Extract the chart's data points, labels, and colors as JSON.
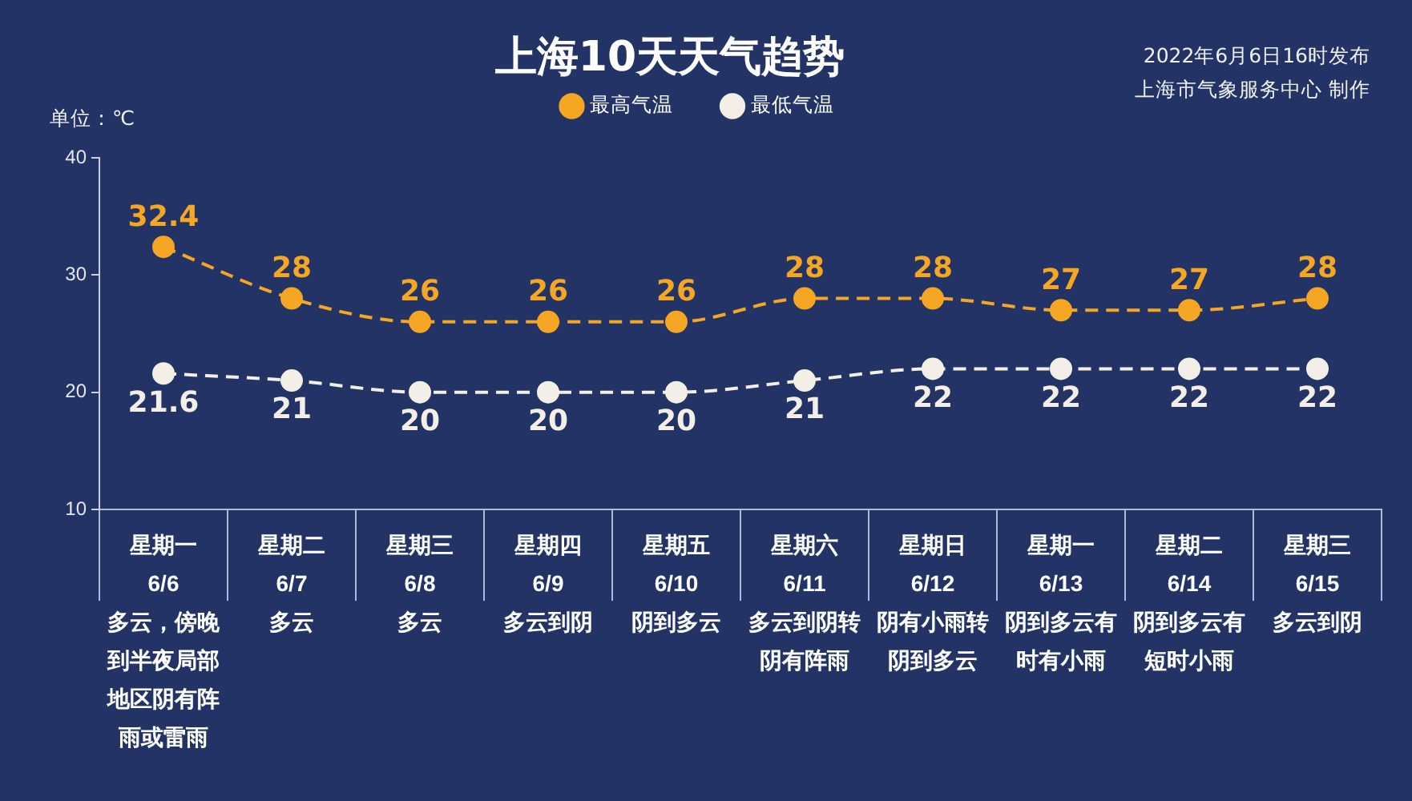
{
  "chart_data": {
    "type": "line",
    "title": "上海10天天气趋势",
    "ylabel": "单位：℃",
    "annotations": [
      "2022年6月6日16时发布",
      "上海市气象服务中心 制作"
    ],
    "categories": [
      "星期一\n6/6\n多云，傍晚到半夜局部地区阴有阵雨或雷雨",
      "星期二\n6/7\n多云",
      "星期三\n6/8\n多云",
      "星期四\n6/9\n多云到阴",
      "星期五\n6/10\n阴到多云",
      "星期六\n6/11\n多云到阴转阴有阵雨",
      "星期日\n6/12\n阴有小雨转阴到多云",
      "星期一\n6/13\n阴到多云有时有小雨",
      "星期二\n6/14\n阴到多云有短时小雨",
      "星期三\n6/15\n多云到阴"
    ],
    "series": [
      {
        "name": "最高气温",
        "color": "#f5a623",
        "values": [
          32.4,
          28,
          26,
          26,
          26,
          28,
          28,
          27,
          27,
          28
        ]
      },
      {
        "name": "最低气温",
        "color": "#f4efe6",
        "values": [
          21.6,
          21,
          20,
          20,
          20,
          21,
          22,
          22,
          22,
          22
        ]
      }
    ],
    "ylim": [
      10,
      40
    ],
    "yticks": [
      10,
      20,
      30,
      40
    ],
    "grid": false,
    "legend": "top",
    "marker": "circle",
    "line_style": "dashed",
    "data_labels": true
  }
}
